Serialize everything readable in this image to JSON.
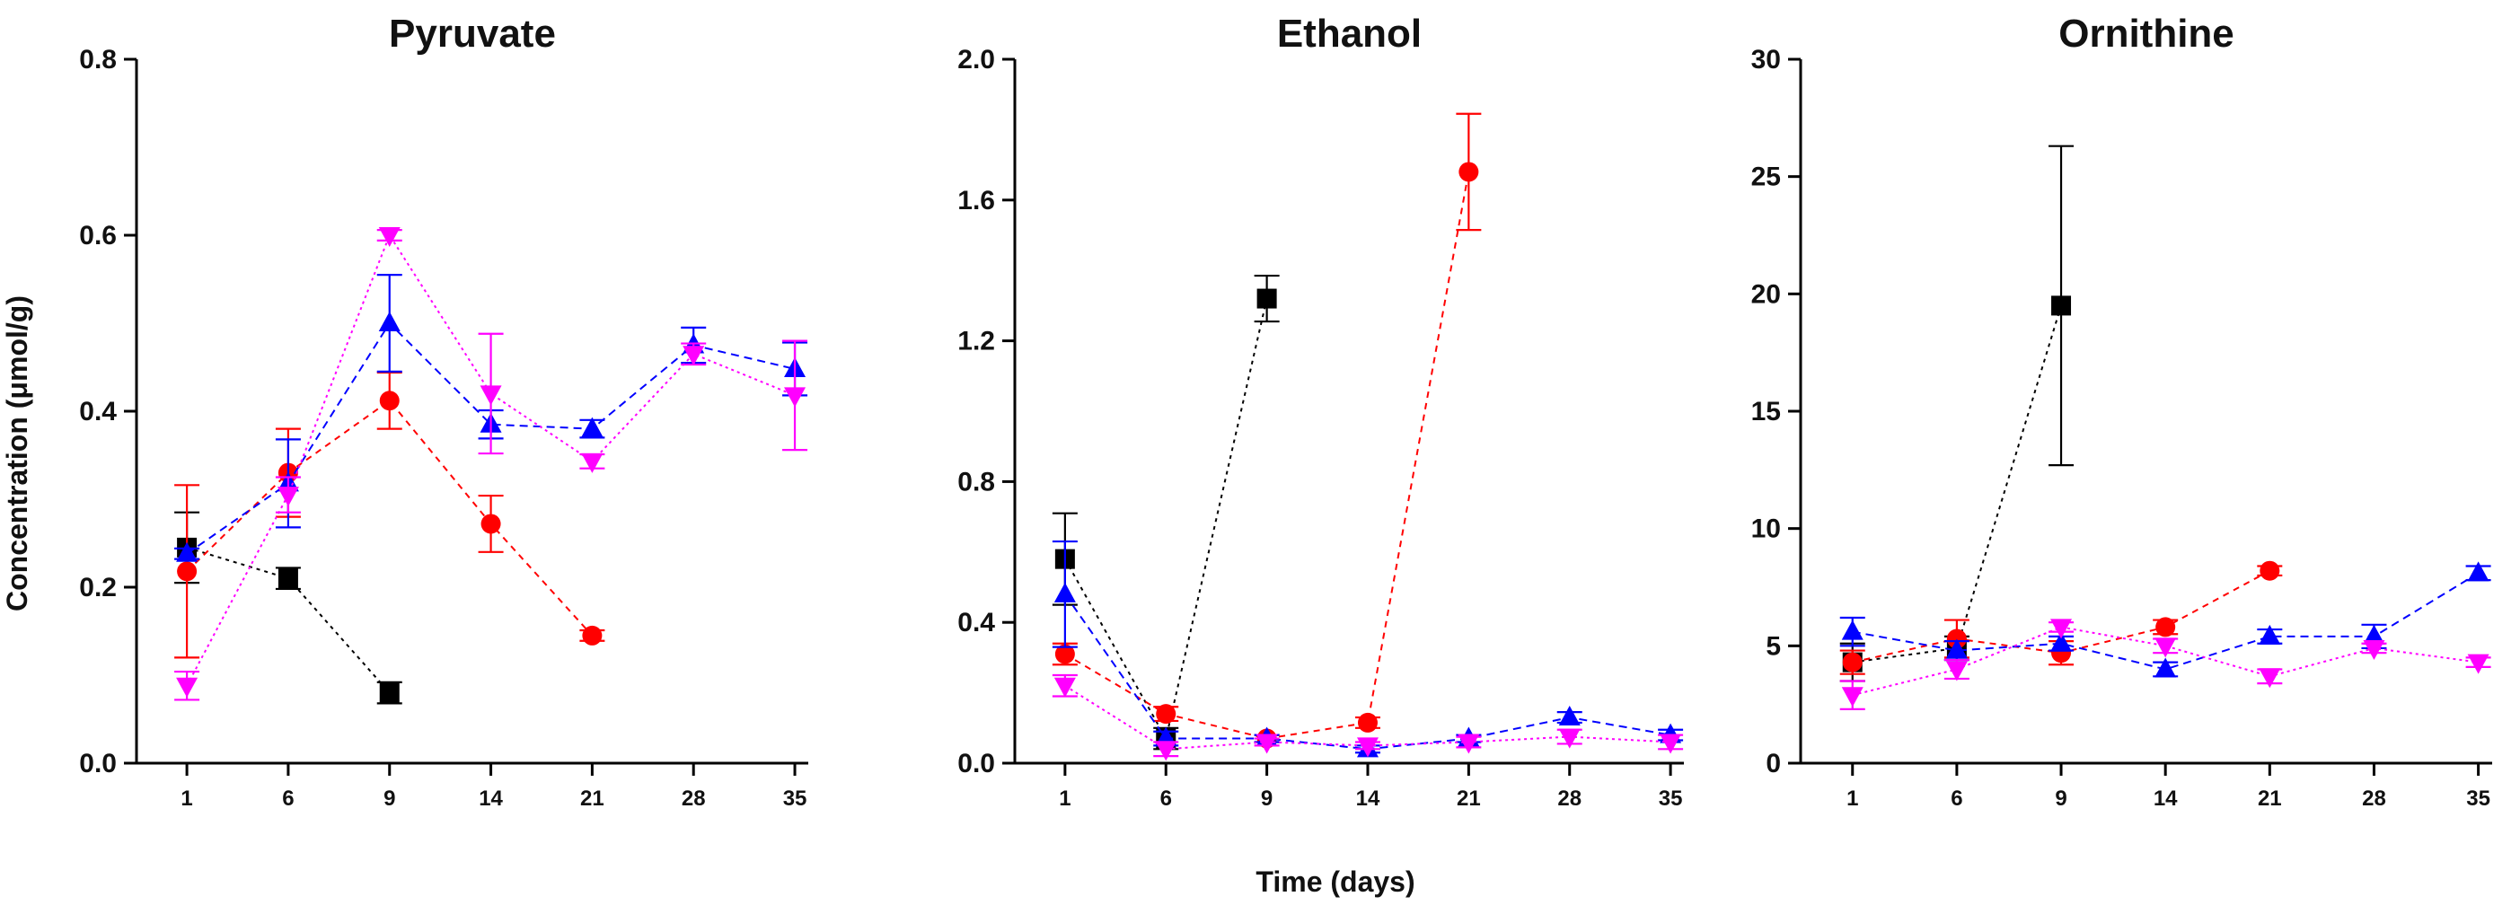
{
  "figure": {
    "ylabel": "Concentration (μmol/g)",
    "xlabel": "Time (days)"
  },
  "series_styles": [
    {
      "name": "series-black",
      "color": "#000000",
      "marker": "square"
    },
    {
      "name": "series-red",
      "color": "#ff0000",
      "marker": "circle"
    },
    {
      "name": "series-blue",
      "color": "#0000ff",
      "marker": "triangle-up"
    },
    {
      "name": "series-magenta",
      "color": "#ff00ff",
      "marker": "triangle-down"
    }
  ],
  "chart_data": [
    {
      "type": "line",
      "title": "Pyruvate",
      "xlabel": "Time (days)",
      "ylabel": "Concentration (μmol/g)",
      "categories": [
        "1",
        "6",
        "9",
        "14",
        "21",
        "28",
        "35"
      ],
      "ylim": [
        0,
        0.8
      ],
      "yticks": [
        "0.0",
        "0.2",
        "0.4",
        "0.6",
        "0.8"
      ],
      "series": [
        {
          "name": "series-black",
          "values": [
            0.245,
            0.21,
            0.08,
            null,
            null,
            null,
            null
          ],
          "errors": [
            0.04,
            0.012,
            0.012,
            null,
            null,
            null,
            null
          ]
        },
        {
          "name": "series-red",
          "values": [
            0.218,
            0.33,
            0.412,
            0.272,
            0.145,
            null,
            null
          ],
          "errors": [
            0.098,
            0.05,
            0.032,
            0.032,
            0.006,
            null,
            null
          ]
        },
        {
          "name": "series-blue",
          "values": [
            0.238,
            0.318,
            0.5,
            0.385,
            0.38,
            0.475,
            0.448
          ],
          "errors": [
            0.006,
            0.05,
            0.055,
            0.016,
            0.01,
            0.02,
            0.03
          ]
        },
        {
          "name": "series-magenta",
          "values": [
            0.088,
            0.305,
            0.6,
            0.42,
            0.343,
            0.465,
            0.418
          ],
          "errors": [
            0.016,
            0.02,
            0.006,
            0.068,
            0.008,
            0.012,
            0.062
          ]
        }
      ]
    },
    {
      "type": "line",
      "title": "Ethanol",
      "xlabel": "Time (days)",
      "ylabel": "",
      "categories": [
        "1",
        "6",
        "9",
        "14",
        "21",
        "28",
        "35"
      ],
      "ylim": [
        0,
        2.0
      ],
      "yticks": [
        "0.0",
        "0.4",
        "0.8",
        "1.2",
        "1.6",
        "2.0"
      ],
      "series": [
        {
          "name": "series-black",
          "values": [
            0.58,
            0.07,
            1.32,
            null,
            null,
            null,
            null
          ],
          "errors": [
            0.13,
            0.03,
            0.065,
            null,
            null,
            null,
            null
          ]
        },
        {
          "name": "series-red",
          "values": [
            0.31,
            0.14,
            0.07,
            0.115,
            1.68,
            null,
            null
          ],
          "errors": [
            0.03,
            0.02,
            0.01,
            0.015,
            0.165,
            null,
            null
          ]
        },
        {
          "name": "series-blue",
          "values": [
            0.48,
            0.07,
            0.07,
            0.04,
            0.07,
            0.13,
            0.08
          ],
          "errors": [
            0.15,
            0.02,
            0.01,
            0.01,
            0.01,
            0.015,
            0.015
          ]
        },
        {
          "name": "series-magenta",
          "values": [
            0.22,
            0.04,
            0.06,
            0.05,
            0.06,
            0.075,
            0.06
          ],
          "errors": [
            0.03,
            0.02,
            0.01,
            0.01,
            0.015,
            0.02,
            0.02
          ]
        }
      ]
    },
    {
      "type": "line",
      "title": "Ornithine",
      "xlabel": "Time (days)",
      "ylabel": "",
      "categories": [
        "1",
        "6",
        "9",
        "14",
        "21",
        "28",
        "35"
      ],
      "ylim": [
        0,
        30
      ],
      "yticks": [
        "0",
        "5",
        "10",
        "15",
        "20",
        "25",
        "30"
      ],
      "series": [
        {
          "name": "series-black",
          "values": [
            4.3,
            4.9,
            19.5,
            null,
            null,
            null,
            null
          ],
          "errors": [
            0.8,
            0.5,
            6.8,
            null,
            null,
            null,
            null
          ]
        },
        {
          "name": "series-red",
          "values": [
            4.3,
            5.3,
            4.7,
            5.8,
            8.2,
            null,
            null
          ],
          "errors": [
            0.5,
            0.8,
            0.5,
            0.3,
            0.2,
            null,
            null
          ]
        },
        {
          "name": "series-blue",
          "values": [
            5.6,
            4.8,
            5.1,
            4.0,
            5.4,
            5.4,
            8.1
          ],
          "errors": [
            0.6,
            0.4,
            0.3,
            0.3,
            0.3,
            0.5,
            0.3
          ]
        },
        {
          "name": "series-magenta",
          "values": [
            2.9,
            4.0,
            5.8,
            5.0,
            3.7,
            4.9,
            4.3
          ],
          "errors": [
            0.6,
            0.4,
            0.2,
            0.3,
            0.3,
            0.2,
            0.2
          ]
        }
      ]
    }
  ]
}
